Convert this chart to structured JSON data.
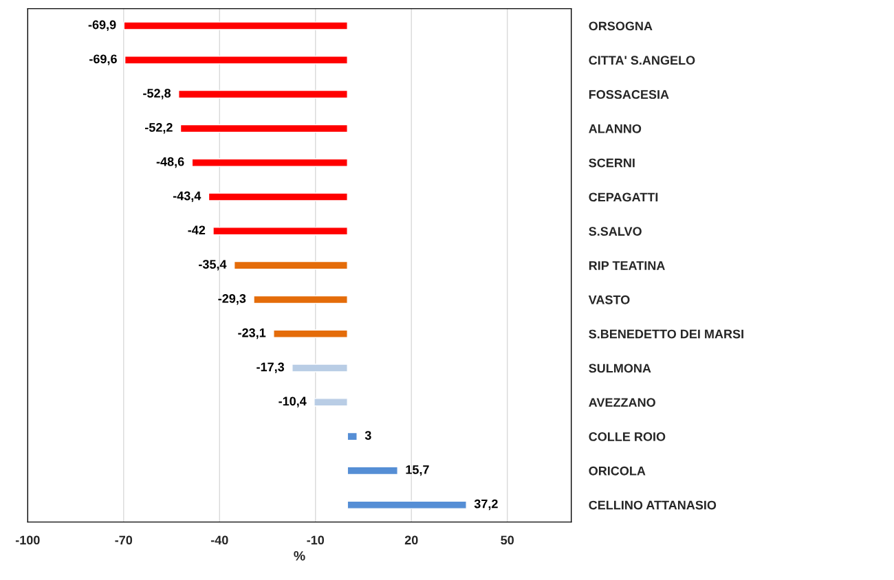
{
  "chart_data": {
    "type": "bar",
    "orientation": "horizontal",
    "xlabel": "%",
    "categories": [
      "ORSOGNA",
      "CITTA' S.ANGELO",
      "FOSSACESIA",
      "ALANNO",
      "SCERNI",
      "CEPAGATTI",
      "S.SALVO",
      "RIP TEATINA",
      "VASTO",
      "S.BENEDETTO DEI MARSI",
      "SULMONA",
      "AVEZZANO",
      "COLLE ROIO",
      "ORICOLA",
      "CELLINO ATTANASIO"
    ],
    "values": [
      -69.9,
      -69.6,
      -52.8,
      -52.2,
      -48.6,
      -43.4,
      -42,
      -35.4,
      -29.3,
      -23.1,
      -17.3,
      -10.4,
      3,
      15.7,
      37.2
    ],
    "value_labels": [
      "-69,9",
      "-69,6",
      "-52,8",
      "-52,2",
      "-48,6",
      "-43,4",
      "-42",
      "-35,4",
      "-29,3",
      "-23,1",
      "-17,3",
      "-10,4",
      "3",
      "15,7",
      "37,2"
    ],
    "colors": [
      "#ff0000",
      "#ff0000",
      "#ff0000",
      "#ff0000",
      "#ff0000",
      "#ff0000",
      "#ff0000",
      "#e46c0a",
      "#e46c0a",
      "#e46c0a",
      "#b9cde5",
      "#b9cde5",
      "#558ed5",
      "#558ed5",
      "#558ed5"
    ],
    "xlim": [
      -100,
      70
    ],
    "xticks": [
      -100,
      -70,
      -40,
      -10,
      20,
      50
    ],
    "grid": "x"
  }
}
